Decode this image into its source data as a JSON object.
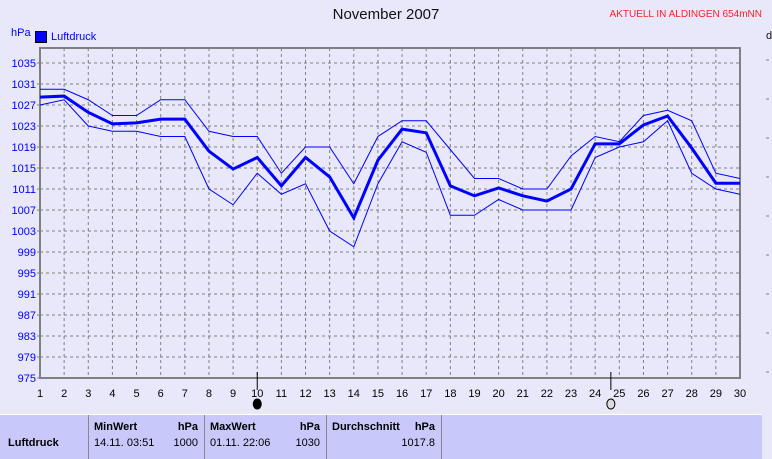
{
  "header": {
    "title": "November 2007",
    "station": "AKTUELL IN ALDINGEN 654mNN",
    "unit": "hPa",
    "right_label": "d"
  },
  "chart_data": {
    "type": "line",
    "title": "November 2007",
    "ylabel": "hPa",
    "ylim": [
      975,
      1035
    ],
    "yticks": [
      975,
      979,
      983,
      987,
      991,
      995,
      999,
      1003,
      1007,
      1011,
      1015,
      1019,
      1023,
      1027,
      1031,
      1035
    ],
    "x": [
      1,
      2,
      3,
      4,
      5,
      6,
      7,
      8,
      9,
      10,
      11,
      12,
      13,
      14,
      15,
      16,
      17,
      18,
      19,
      20,
      21,
      22,
      23,
      24,
      25,
      26,
      27,
      28,
      29,
      30
    ],
    "grid": true,
    "legend": {
      "position": "top-left",
      "entries": [
        "Luftdruck"
      ]
    },
    "series": [
      {
        "name": "Luftdruck",
        "role": "mean",
        "color": "#0000ff",
        "values": [
          1028.5,
          1028.7,
          1025.6,
          1023.4,
          1023.6,
          1024.3,
          1024.3,
          1018.2,
          1014.8,
          1017.0,
          1011.6,
          1017.0,
          1013.3,
          1005.5,
          1016.5,
          1022.4,
          1021.7,
          1011.6,
          1009.7,
          1011.2,
          1009.7,
          1008.7,
          1011.0,
          1019.6,
          1019.6,
          1023.2,
          1024.9,
          1018.8,
          1012.1,
          1012.1
        ]
      },
      {
        "role": "max",
        "color": "#0000ff",
        "values": [
          1030,
          1030,
          1028,
          1025,
          1025,
          1028,
          1028,
          1022,
          1021,
          1021,
          1014,
          1019,
          1019,
          1012,
          1021,
          1024,
          1024,
          1018.5,
          1013,
          1013,
          1011,
          1011,
          1017.3,
          1021,
          1020,
          1025,
          1026,
          1024,
          1014,
          1013
        ]
      },
      {
        "role": "min",
        "color": "#0000ff",
        "values": [
          1027,
          1028,
          1023,
          1022,
          1022,
          1021,
          1021,
          1011,
          1008,
          1014,
          1010,
          1012,
          1003,
          1000,
          1012,
          1020,
          1018,
          1006,
          1006,
          1009,
          1007,
          1007,
          1007,
          1017,
          1019,
          1020,
          1024,
          1014,
          1011,
          1010
        ]
      }
    ],
    "markers": [
      {
        "type": "new-moon",
        "day": 10
      },
      {
        "type": "full-moon",
        "day": 24.65
      }
    ]
  },
  "stats": {
    "row_label": "Luftdruck",
    "min": {
      "label": "MinWert",
      "unit": "hPa",
      "time": "14.11.  03:51",
      "value": "1000"
    },
    "max": {
      "label": "MaxWert",
      "unit": "hPa",
      "time": "01.11.  22:06",
      "value": "1030"
    },
    "avg": {
      "label": "Durchschnitt",
      "unit": "hPa",
      "value": "1017.8"
    }
  }
}
